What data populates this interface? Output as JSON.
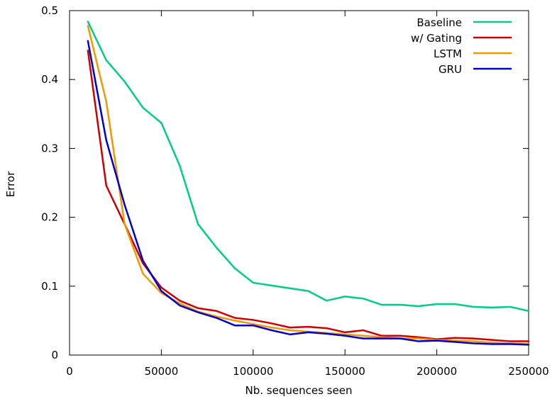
{
  "chart_data": {
    "type": "line",
    "xlabel": "Nb. sequences seen",
    "ylabel": "Error",
    "xlim": [
      0,
      250000
    ],
    "ylim": [
      0,
      0.5
    ],
    "grid": false,
    "legend_position": "top-right",
    "x_ticks": [
      0,
      50000,
      100000,
      150000,
      200000,
      250000
    ],
    "y_ticks": [
      0,
      0.1,
      0.2,
      0.3,
      0.4,
      0.5
    ],
    "x_tick_labels": [
      "0",
      "50000",
      "100000",
      "150000",
      "200000",
      "250000"
    ],
    "y_tick_labels": [
      "0",
      "0.1",
      "0.2",
      "0.3",
      "0.4",
      "0.5"
    ],
    "series": [
      {
        "name": "Baseline",
        "color": "#00CC88",
        "x": [
          10000,
          20000,
          30000,
          40000,
          50000,
          60000,
          70000,
          80000,
          90000,
          100000,
          110000,
          120000,
          130000,
          140000,
          150000,
          160000,
          170000,
          180000,
          190000,
          200000,
          210000,
          220000,
          230000,
          240000,
          250000
        ],
        "y": [
          0.484,
          0.428,
          0.397,
          0.359,
          0.337,
          0.275,
          0.19,
          0.156,
          0.126,
          0.105,
          0.101,
          0.097,
          0.093,
          0.079,
          0.085,
          0.082,
          0.073,
          0.073,
          0.071,
          0.074,
          0.074,
          0.07,
          0.069,
          0.07,
          0.064
        ]
      },
      {
        "name": "w/ Gating",
        "color": "#CC0000",
        "x": [
          10000,
          20000,
          30000,
          40000,
          50000,
          60000,
          70000,
          80000,
          90000,
          100000,
          110000,
          120000,
          130000,
          140000,
          150000,
          160000,
          170000,
          180000,
          190000,
          200000,
          210000,
          220000,
          230000,
          240000,
          250000
        ],
        "y": [
          0.442,
          0.246,
          0.19,
          0.133,
          0.098,
          0.079,
          0.068,
          0.064,
          0.054,
          0.051,
          0.046,
          0.04,
          0.041,
          0.039,
          0.033,
          0.036,
          0.028,
          0.028,
          0.026,
          0.023,
          0.025,
          0.024,
          0.022,
          0.02,
          0.02
        ]
      },
      {
        "name": "LSTM",
        "color": "#EE9900",
        "x": [
          10000,
          20000,
          30000,
          40000,
          50000,
          60000,
          70000,
          80000,
          90000,
          100000,
          110000,
          120000,
          130000,
          140000,
          150000,
          160000,
          170000,
          180000,
          190000,
          200000,
          210000,
          220000,
          230000,
          240000,
          250000
        ],
        "y": [
          0.478,
          0.368,
          0.19,
          0.118,
          0.09,
          0.075,
          0.063,
          0.056,
          0.05,
          0.045,
          0.04,
          0.036,
          0.034,
          0.032,
          0.03,
          0.028,
          0.026,
          0.024,
          0.024,
          0.022,
          0.021,
          0.02,
          0.018,
          0.017,
          0.016
        ]
      },
      {
        "name": "GRU",
        "color": "#0000CC",
        "x": [
          10000,
          20000,
          30000,
          40000,
          50000,
          60000,
          70000,
          80000,
          90000,
          100000,
          110000,
          120000,
          130000,
          140000,
          150000,
          160000,
          170000,
          180000,
          190000,
          200000,
          210000,
          220000,
          230000,
          240000,
          250000
        ],
        "y": [
          0.456,
          0.312,
          0.218,
          0.137,
          0.093,
          0.072,
          0.062,
          0.054,
          0.043,
          0.043,
          0.036,
          0.03,
          0.033,
          0.031,
          0.028,
          0.024,
          0.024,
          0.024,
          0.02,
          0.021,
          0.019,
          0.017,
          0.016,
          0.016,
          0.015
        ]
      }
    ]
  }
}
